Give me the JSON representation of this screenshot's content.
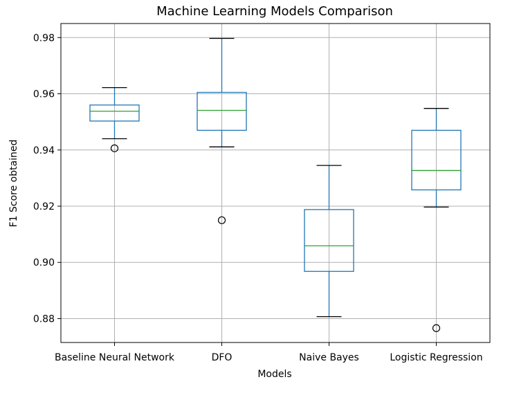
{
  "chart_data": {
    "type": "box",
    "title": "Machine Learning Models Comparison",
    "xlabel": "Models",
    "ylabel": "F1 Score obtained",
    "ylim": [
      0.8715,
      0.985
    ],
    "yticks": [
      0.88,
      0.9,
      0.92,
      0.94,
      0.96,
      0.98
    ],
    "ytick_labels": [
      "0.88",
      "0.90",
      "0.92",
      "0.94",
      "0.96",
      "0.98"
    ],
    "grid": true,
    "categories": [
      "Baseline Neural Network",
      "DFO",
      "Naive Bayes",
      "Logistic Regression"
    ],
    "boxes": [
      {
        "whislo": 0.944,
        "q1": 0.9503,
        "med": 0.9538,
        "q3": 0.956,
        "whishi": 0.9622,
        "fliers": [
          0.9406
        ]
      },
      {
        "whislo": 0.9411,
        "q1": 0.947,
        "med": 0.9541,
        "q3": 0.9605,
        "whishi": 0.9797,
        "fliers": [
          0.915
        ]
      },
      {
        "whislo": 0.8807,
        "q1": 0.8968,
        "med": 0.9059,
        "q3": 0.9188,
        "whishi": 0.9345,
        "fliers": []
      },
      {
        "whislo": 0.9197,
        "q1": 0.9258,
        "med": 0.9327,
        "q3": 0.947,
        "whishi": 0.9548,
        "fliers": [
          0.8766
        ]
      }
    ]
  }
}
